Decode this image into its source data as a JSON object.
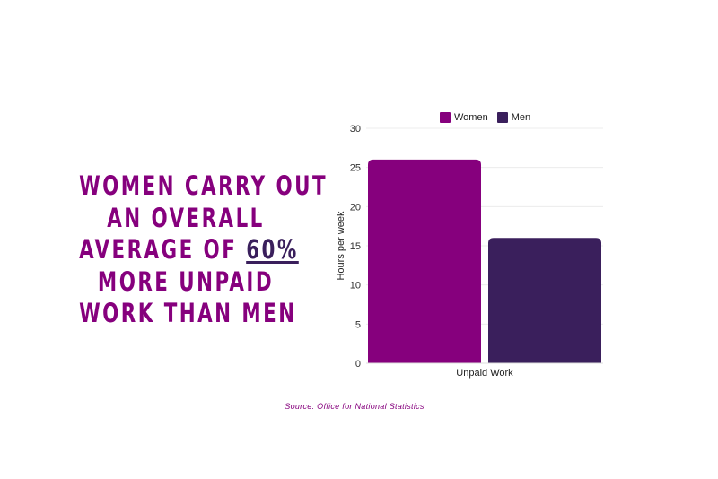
{
  "headline": {
    "lines": [
      "WOMEN CARRY OUT",
      "AN OVERALL",
      "AVERAGE OF ",
      "MORE UNPAID",
      "WORK THAN MEN"
    ],
    "highlight": "60%"
  },
  "source": "Source: Office for National Statistics",
  "chart_data": {
    "type": "bar",
    "categories": [
      "Unpaid Work"
    ],
    "series": [
      {
        "name": "Women",
        "values": [
          26
        ],
        "color": "#86007d"
      },
      {
        "name": "Men",
        "values": [
          16
        ],
        "color": "#3a1f5c"
      }
    ],
    "ylabel": "Hours per week",
    "ylim": [
      0,
      30
    ],
    "yticks": [
      "0",
      "5",
      "10",
      "15",
      "20",
      "25",
      "30"
    ],
    "grid": true,
    "legend": "top"
  }
}
